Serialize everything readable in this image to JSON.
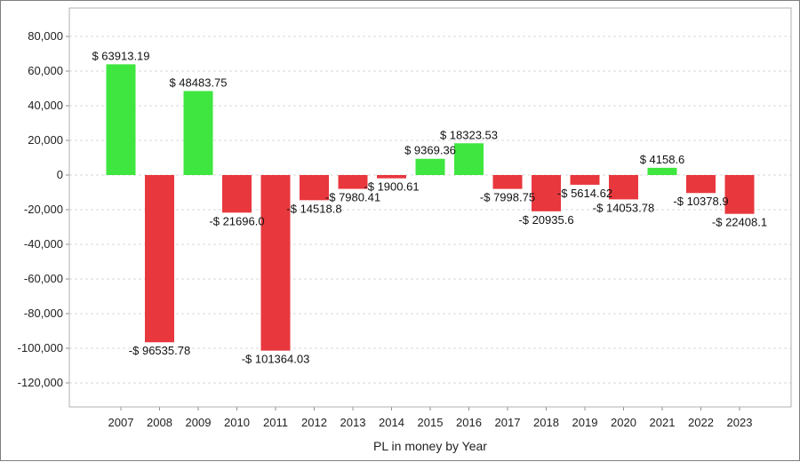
{
  "chart_data": {
    "type": "bar",
    "title": "",
    "xlabel": "PL in money by Year",
    "ylabel": "",
    "ylim": [
      -130000,
      90000
    ],
    "yticks": [
      80000,
      60000,
      40000,
      20000,
      0,
      -20000,
      -40000,
      -60000,
      -80000,
      -100000,
      -120000
    ],
    "ytick_labels": [
      "80,000",
      "60,000",
      "40,000",
      "20,000",
      "0",
      "-20,000",
      "-40,000",
      "-60,000",
      "-80,000",
      "-100,000",
      "-120,000"
    ],
    "grid": true,
    "categories": [
      "2007",
      "2008",
      "2009",
      "2010",
      "2011",
      "2012",
      "2013",
      "2014",
      "2015",
      "2016",
      "2017",
      "2018",
      "2019",
      "2020",
      "2021",
      "2022",
      "2023"
    ],
    "values": [
      63913.19,
      -96535.78,
      48483.75,
      -21696.0,
      -101364.03,
      -14518.8,
      -7980.41,
      -1900.61,
      9369.36,
      18323.53,
      -7998.75,
      -20935.6,
      -5614.62,
      -14053.78,
      4158.6,
      -10378.9,
      -22408.1
    ],
    "data_labels": [
      "$ 63913.19",
      "-$ 96535.78",
      "$ 48483.75",
      "-$ 21696.0",
      "-$ 101364.03",
      "-$ 14518.8",
      "-$ 7980.41",
      "-$ 1900.61",
      "$ 9369.36",
      "$ 18323.53",
      "-$ 7998.75",
      "-$ 20935.6",
      "-$ 5614.62",
      "-$ 14053.78",
      "$ 4158.6",
      "-$ 10378.9",
      "-$ 22408.1"
    ],
    "colors": {
      "positive": "#3fe63f",
      "negative": "#e8373d",
      "grid": "#d9d9d9",
      "axis": "#8c8c8c"
    }
  }
}
